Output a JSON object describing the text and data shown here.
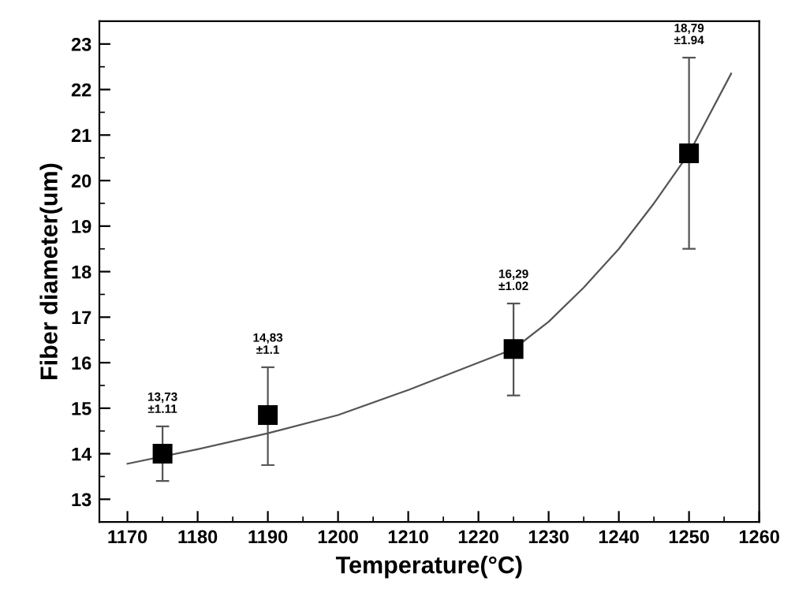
{
  "chart_data": {
    "type": "scatter",
    "xlabel": "Temperature(°C)",
    "ylabel": "Fiber diameter(um)",
    "xlim": [
      1166,
      1260
    ],
    "ylim": [
      12.5,
      23.5
    ],
    "xticks": [
      1170,
      {
        "value": 1175,
        "label": null
      },
      1180,
      {
        "value": 1185,
        "label": null
      },
      1190,
      {
        "value": 1195,
        "label": null
      },
      1200,
      {
        "value": 1205,
        "label": null
      },
      1210,
      {
        "value": 1215,
        "label": null
      },
      1220,
      {
        "value": 1225,
        "label": null
      },
      1230,
      {
        "value": 1235,
        "label": null
      },
      1240,
      {
        "value": 1245,
        "label": null
      },
      1250,
      {
        "value": 1255,
        "label": null
      },
      1260
    ],
    "yticks": [
      13,
      {
        "value": 13.5,
        "label": null
      },
      14,
      {
        "value": 14.5,
        "label": null
      },
      15,
      {
        "value": 15.5,
        "label": null
      },
      16,
      {
        "value": 16.5,
        "label": null
      },
      17,
      {
        "value": 17.5,
        "label": null
      },
      18,
      {
        "value": 18.5,
        "label": null
      },
      19,
      {
        "value": 19.5,
        "label": null
      },
      20,
      {
        "value": 20.5,
        "label": null
      },
      21,
      {
        "value": 21.5,
        "label": null
      },
      22,
      {
        "value": 22.5,
        "label": null
      },
      23
    ],
    "grid": false,
    "legend": false,
    "series": [
      {
        "color": "#000000",
        "marker": "square",
        "x": [
          1175,
          1190,
          1225,
          1250
        ],
        "values": [
          14.0,
          14.85,
          16.3,
          20.6
        ],
        "errors": [
          [
            13.4,
            14.6
          ],
          [
            13.75,
            15.9
          ],
          [
            15.28,
            17.3
          ],
          [
            18.5,
            22.7
          ]
        ]
      },
      {
        "type": "line",
        "color": "#555555",
        "marker": "none",
        "line_style": "solid",
        "x": [
          1170,
          1180,
          1190,
          1200,
          1210,
          1220,
          1225,
          1230,
          1235,
          1240,
          1245,
          1250,
          1256
        ],
        "values": [
          13.78,
          14.1,
          14.45,
          14.85,
          15.4,
          16.0,
          16.3,
          16.9,
          17.65,
          18.5,
          19.5,
          20.6,
          22.35
        ]
      }
    ],
    "annotations": [
      {
        "text": "13,73\n±1.11",
        "x": 1175,
        "y": 14.6
      },
      {
        "text": "14,83\n±1.1",
        "x": 1190,
        "y": 15.9
      },
      {
        "text": "16,29\n±1.02",
        "x": 1225,
        "y": 17.3
      },
      {
        "text": "18,79\n±1.94",
        "x": 1250,
        "y": 22.7
      }
    ]
  }
}
